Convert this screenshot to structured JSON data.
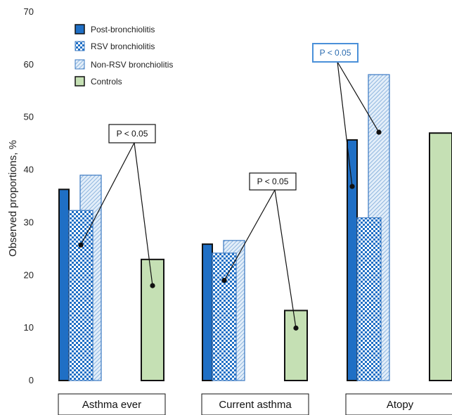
{
  "chart_data": {
    "type": "bar",
    "ylabel": "Observed proportions, %",
    "ylim": [
      0,
      70
    ],
    "yticks": [
      0,
      10,
      20,
      30,
      40,
      50,
      60,
      70
    ],
    "categories": [
      "Asthma ever",
      "Current asthma",
      "Atopy"
    ],
    "series": [
      {
        "name": "Post-bronchiolitis",
        "values": [
          36.3,
          25.9,
          45.7
        ],
        "color": "#1f6fc5",
        "pattern": "solid"
      },
      {
        "name": "RSV bronchiolitis",
        "values": [
          32.3,
          24.2,
          30.9
        ],
        "color": "#1f6fc5",
        "pattern": "checker"
      },
      {
        "name": "Non-RSV bronchiolitis",
        "values": [
          39.0,
          26.6,
          58.1
        ],
        "color": "#5b9bd5",
        "pattern": "hatch"
      },
      {
        "name": "Controls",
        "values": [
          23.0,
          13.3,
          47.0
        ],
        "color": "#c5e0b4",
        "pattern": "solid"
      }
    ],
    "annotations": [
      {
        "text": "P < 0.05",
        "category": "Asthma ever",
        "style": "black"
      },
      {
        "text": "P < 0.05",
        "category": "Current asthma",
        "style": "black"
      },
      {
        "text": "P < 0.05",
        "category": "Atopy",
        "style": "blue"
      }
    ],
    "legend_position": "top-left",
    "grid": false
  }
}
